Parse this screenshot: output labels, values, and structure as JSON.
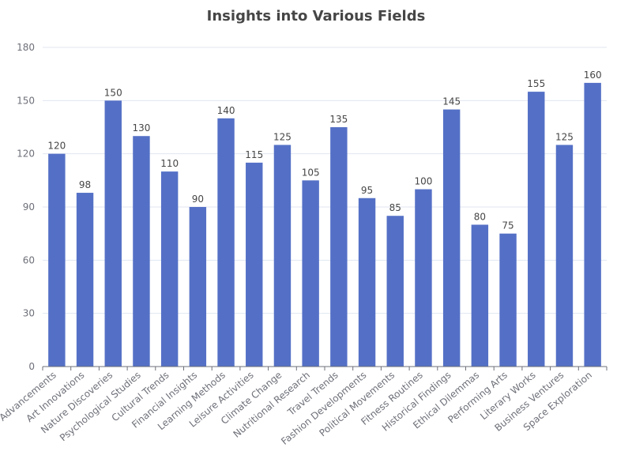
{
  "chart_data": {
    "type": "bar",
    "title": "Insights into Various Fields",
    "xlabel": "",
    "ylabel": "",
    "ylim": [
      0,
      180
    ],
    "yticks": [
      0,
      30,
      60,
      90,
      120,
      150,
      180
    ],
    "grid": true,
    "bar_color": "#5470c6",
    "categories": [
      "Technology Advancements",
      "Art Innovations",
      "Nature Discoveries",
      "Psychological Studies",
      "Cultural Trends",
      "Financial Insights",
      "Learning Methods",
      "Leisure Activities",
      "Climate Change",
      "Nutritional Research",
      "Travel Trends",
      "Fashion Developments",
      "Political Movements",
      "Fitness Routines",
      "Historical Findings",
      "Ethical Dilemmas",
      "Performing Arts",
      "Literary Works",
      "Business Ventures",
      "Space Exploration"
    ],
    "values": [
      120,
      98,
      150,
      130,
      110,
      90,
      140,
      115,
      125,
      105,
      135,
      95,
      85,
      100,
      145,
      80,
      75,
      155,
      125,
      160
    ]
  }
}
